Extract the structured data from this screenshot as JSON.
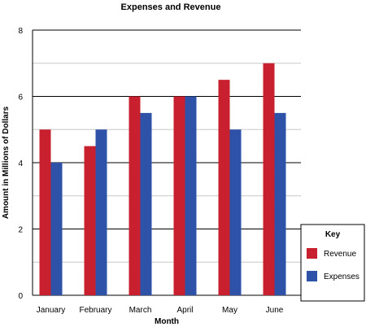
{
  "chart_data": {
    "type": "bar",
    "title": "Expenses and Revenue",
    "xlabel": "Month",
    "ylabel": "Amount in Millions of Dollars",
    "categories": [
      "January",
      "February",
      "March",
      "April",
      "May",
      "June"
    ],
    "series": [
      {
        "name": "Revenue",
        "values": [
          5,
          4.5,
          6,
          6,
          6.5,
          7
        ],
        "color": "#c8202f"
      },
      {
        "name": "Expenses",
        "values": [
          4,
          5,
          5.5,
          6,
          5,
          5.5
        ],
        "color": "#2e52a8"
      }
    ],
    "ylim": [
      0,
      8
    ],
    "yticks": [
      "0",
      "2",
      "4",
      "6",
      "8"
    ],
    "grid": true,
    "legend": {
      "title": "Key",
      "placement": "right"
    }
  }
}
